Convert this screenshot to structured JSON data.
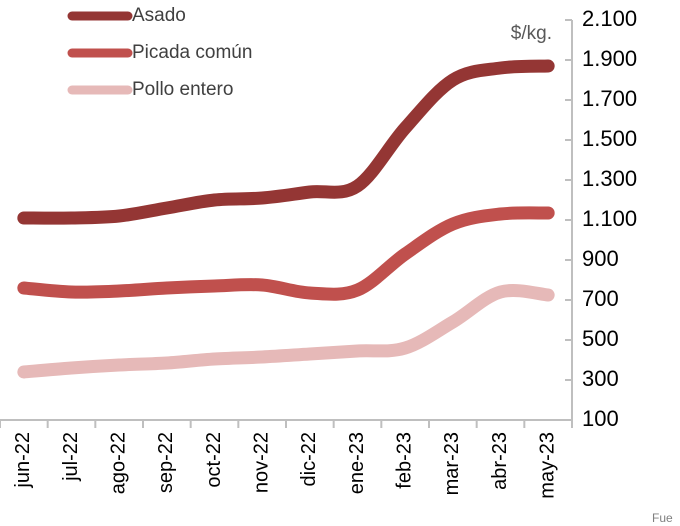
{
  "chart_data": {
    "type": "line",
    "categories": [
      "jun-22",
      "jul-22",
      "ago-22",
      "sep-22",
      "oct-22",
      "nov-22",
      "dic-22",
      "ene-23",
      "feb-23",
      "mar-23",
      "abr-23",
      "may-23"
    ],
    "series": [
      {
        "name": "Asado",
        "color": "#943634",
        "values": [
          1110,
          1110,
          1120,
          1160,
          1200,
          1210,
          1240,
          1270,
          1560,
          1800,
          1860,
          1870
        ]
      },
      {
        "name": "Picada común",
        "color": "#c0504d",
        "values": [
          760,
          740,
          745,
          760,
          770,
          775,
          735,
          750,
          930,
          1080,
          1130,
          1135
        ]
      },
      {
        "name": "Pollo entero",
        "color": "#e6b9b8",
        "values": [
          340,
          360,
          375,
          385,
          405,
          415,
          430,
          445,
          460,
          590,
          740,
          725
        ]
      }
    ],
    "y_axis_label": "$/kg.",
    "ylim": [
      100,
      2100
    ],
    "yticks": [
      100,
      300,
      500,
      700,
      900,
      {
        "value": 1100,
        "label": "1.100"
      },
      {
        "value": 1300,
        "label": "1.300"
      },
      {
        "value": 1500,
        "label": "1.500"
      },
      {
        "value": 1700,
        "label": "1.700"
      },
      {
        "value": 1900,
        "label": "1.900"
      },
      {
        "value": 2100,
        "label": "2.100"
      }
    ],
    "y_axis_side": "right",
    "legend": "top-left",
    "source": "Fue"
  }
}
